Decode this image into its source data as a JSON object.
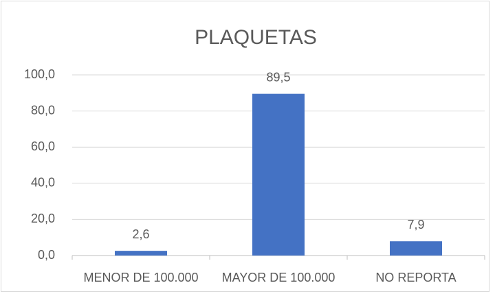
{
  "chart_data": {
    "type": "bar",
    "title": "PLAQUETAS",
    "categories": [
      "MENOR DE 100.000",
      "MAYOR DE 100.000",
      "NO REPORTA"
    ],
    "values": [
      2.6,
      89.5,
      7.9
    ],
    "value_labels": [
      "2,6",
      "89,5",
      "7,9"
    ],
    "color": "#4472c4",
    "ylim": [
      0,
      100
    ],
    "yticks": [
      {
        "value": 0,
        "label": "0,0"
      },
      {
        "value": 20,
        "label": "20,0"
      },
      {
        "value": 40,
        "label": "40,0"
      },
      {
        "value": 60,
        "label": "60,0"
      },
      {
        "value": 80,
        "label": "80,0"
      },
      {
        "value": 100,
        "label": "100,0"
      }
    ],
    "grid": true
  }
}
